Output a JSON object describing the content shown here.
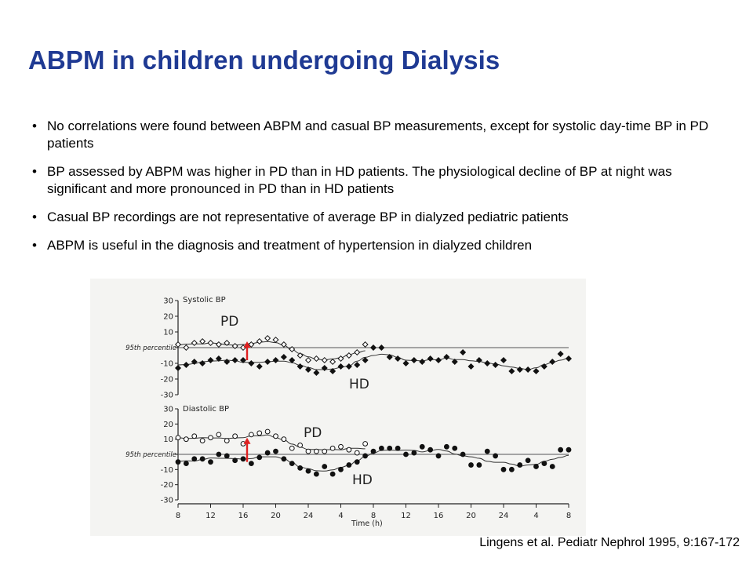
{
  "slide": {
    "title": "ABPM in children undergoing Dialysis",
    "bullets": [
      "No correlations were found between ABPM and casual BP measurements, except for systolic day-time BP in PD patients",
      "BP assessed by ABPM was higher in PD than in HD patients. The physiological decline of BP at night was significant and more pronounced in PD than in HD patients",
      "Casual BP recordings are not representative of average BP in dialyzed pediatric patients",
      "ABPM is useful in the diagnosis and treatment of hypertension in dialyzed children"
    ],
    "citation": "Lingens et al. Pediatr Nephrol 1995, 9:167-172"
  },
  "colors": {
    "title": "#1f3a93",
    "arrow": "#e02020",
    "ink": "#222222",
    "figure_bg": "#f4f4f2"
  },
  "chart_data": [
    {
      "type": "scatter",
      "title": "Systolic BP",
      "xlabel": "Time (h)",
      "ylabel": "",
      "ylim": [
        -30,
        30
      ],
      "x_ticks": [
        "8",
        "12",
        "16",
        "20",
        "24",
        "4",
        "8",
        "12",
        "16",
        "20",
        "24",
        "4",
        "8"
      ],
      "y_ticks": [
        "30",
        "20",
        "10",
        "",
        "-10",
        "-20",
        "-30"
      ],
      "reference_line": {
        "label": "95th percentile",
        "value": 0
      },
      "series": [
        {
          "name": "PD",
          "marker": "open-diamond",
          "x": [
            8,
            9,
            10,
            11,
            12,
            13,
            14,
            15,
            16,
            17,
            18,
            19,
            20,
            21,
            22,
            23,
            24,
            25,
            26,
            27,
            28,
            29,
            30,
            31
          ],
          "y": [
            2,
            0,
            3,
            4,
            3,
            2,
            3,
            1,
            0,
            2,
            4,
            6,
            5,
            2,
            -1,
            -5,
            -8,
            -7,
            -8,
            -9,
            -7,
            -5,
            -3,
            2
          ]
        },
        {
          "name": "HD",
          "marker": "filled-diamond",
          "x": [
            8,
            9,
            10,
            11,
            12,
            13,
            14,
            15,
            16,
            17,
            18,
            19,
            20,
            21,
            22,
            23,
            24,
            25,
            26,
            27,
            28,
            29,
            30,
            31,
            32,
            33,
            34,
            35,
            36,
            37,
            38,
            39,
            40,
            41,
            42,
            43,
            44,
            45,
            46,
            47,
            48,
            49,
            50,
            51,
            52,
            53,
            54,
            55,
            56
          ],
          "y": [
            -13,
            -11,
            -9,
            -10,
            -8,
            -7,
            -9,
            -8,
            -8,
            -10,
            -12,
            -9,
            -8,
            -6,
            -8,
            -12,
            -14,
            -16,
            -13,
            -15,
            -12,
            -12,
            -11,
            -8,
            0,
            0,
            -6,
            -7,
            -10,
            -8,
            -9,
            -7,
            -8,
            -6,
            -9,
            -3,
            -12,
            -8,
            -10,
            -11,
            -8,
            -15,
            -14,
            -14,
            -15,
            -12,
            -9,
            -4,
            -7
          ]
        }
      ]
    },
    {
      "type": "scatter",
      "title": "Diastolic BP",
      "xlabel": "Time (h)",
      "ylabel": "",
      "ylim": [
        -30,
        30
      ],
      "x_ticks": [
        "8",
        "12",
        "16",
        "20",
        "24",
        "4",
        "8",
        "12",
        "16",
        "20",
        "24",
        "4",
        "8"
      ],
      "y_ticks": [
        "30",
        "20",
        "10",
        "",
        "-10",
        "-20",
        "-30"
      ],
      "reference_line": {
        "label": "95th percentile",
        "value": 0
      },
      "series": [
        {
          "name": "PD",
          "marker": "open-circle",
          "x": [
            8,
            9,
            10,
            11,
            12,
            13,
            14,
            15,
            16,
            17,
            18,
            19,
            20,
            21,
            22,
            23,
            24,
            25,
            26,
            27,
            28,
            29,
            30,
            31
          ],
          "y": [
            11,
            10,
            12,
            9,
            11,
            13,
            9,
            12,
            7,
            13,
            14,
            15,
            12,
            10,
            4,
            6,
            2,
            2,
            2,
            4,
            5,
            3,
            1,
            7
          ]
        },
        {
          "name": "HD",
          "marker": "filled-circle",
          "x": [
            8,
            9,
            10,
            11,
            12,
            13,
            14,
            15,
            16,
            17,
            18,
            19,
            20,
            21,
            22,
            23,
            24,
            25,
            26,
            27,
            28,
            29,
            30,
            31,
            32,
            33,
            34,
            35,
            36,
            37,
            38,
            39,
            40,
            41,
            42,
            43,
            44,
            45,
            46,
            47,
            48,
            49,
            50,
            51,
            52,
            53,
            54,
            55,
            56
          ],
          "y": [
            -5,
            -6,
            -3,
            -3,
            -5,
            0,
            -1,
            -4,
            -3,
            -6,
            -2,
            1,
            2,
            -3,
            -6,
            -9,
            -11,
            -13,
            -8,
            -13,
            -10,
            -7,
            -5,
            -1,
            2,
            4,
            4,
            4,
            0,
            1,
            5,
            3,
            -1,
            5,
            4,
            0,
            -7,
            -7,
            2,
            -1,
            -10,
            -10,
            -7,
            -4,
            -8,
            -6,
            -8,
            3,
            3
          ]
        }
      ]
    }
  ]
}
